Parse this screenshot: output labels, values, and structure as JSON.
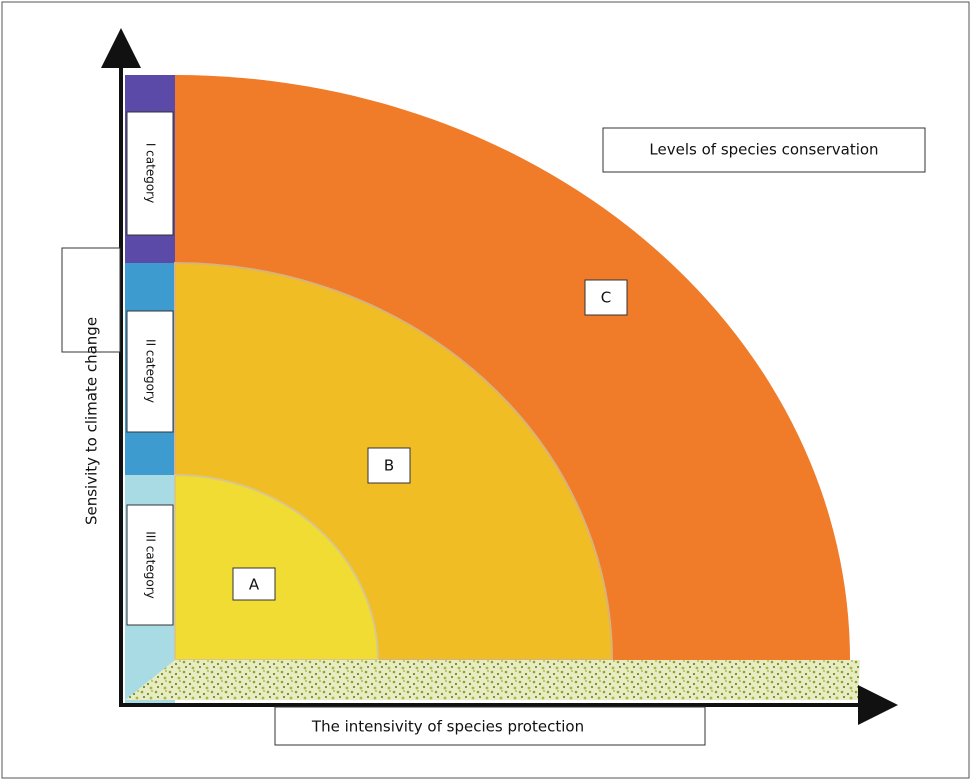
{
  "title": "Levels of species conservation",
  "x_axis_label": "The intensivity of species protection",
  "y_axis_label": "Sensivity to climate change",
  "categories": [
    "I category",
    "II category",
    "III category"
  ],
  "zones": [
    "A",
    "B",
    "C"
  ]
}
